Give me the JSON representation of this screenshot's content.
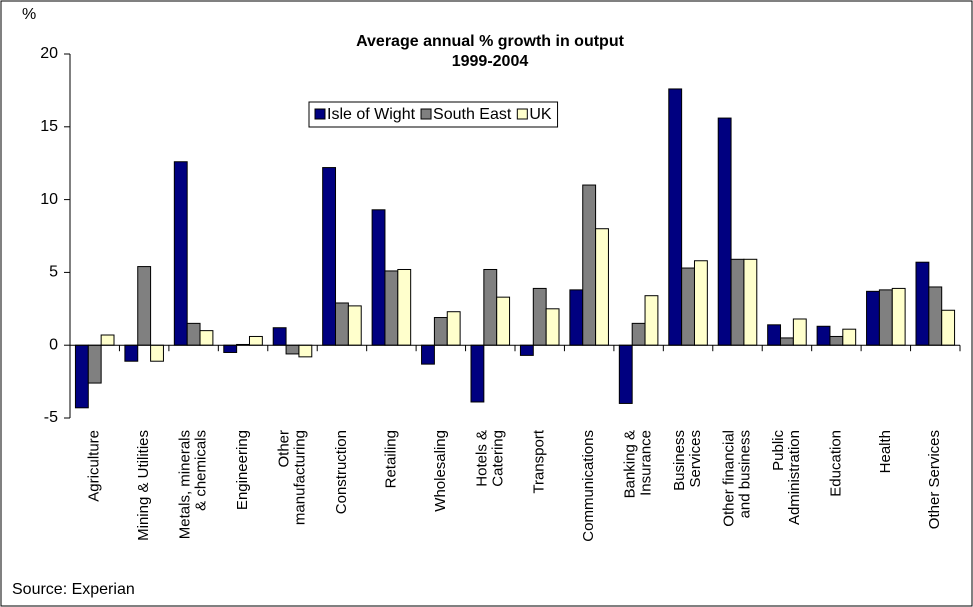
{
  "chart_data": {
    "type": "bar",
    "title": "Average annual % growth in output\n1999-2004",
    "y_label": "%",
    "source": "Source: Experian",
    "categories": [
      "Agriculture",
      "Mining & Utilities",
      "Metals, minerals\n& chemicals",
      "Engineering",
      "Other\nmanufacturing",
      "Construction",
      "Retailing",
      "Wholesaling",
      "Hotels &\nCatering",
      "Transport",
      "Communications",
      "Banking &\nInsurance",
      "Business\nServices",
      "Other financial\nand business",
      "Public\nAdministration",
      "Education",
      "Health",
      "Other Services"
    ],
    "series": [
      {
        "name": "Isle of Wight",
        "color": "#000080",
        "values": [
          -4.3,
          -1.1,
          12.6,
          -0.5,
          1.2,
          12.2,
          9.3,
          -1.3,
          -3.9,
          -0.7,
          3.8,
          -4.0,
          17.6,
          15.6,
          1.4,
          1.3,
          3.7,
          5.7
        ]
      },
      {
        "name": "South East",
        "color": "#808080",
        "values": [
          -2.6,
          5.4,
          1.5,
          0.05,
          -0.6,
          2.9,
          5.1,
          1.9,
          5.2,
          3.9,
          11.0,
          1.5,
          5.3,
          5.9,
          0.5,
          0.6,
          3.8,
          4.0
        ]
      },
      {
        "name": "UK",
        "color": "#ffffcc",
        "values": [
          0.7,
          -1.1,
          1.0,
          0.6,
          -0.8,
          2.7,
          5.2,
          2.3,
          3.3,
          2.5,
          8.0,
          3.4,
          5.8,
          5.9,
          1.8,
          1.1,
          3.9,
          2.4
        ]
      }
    ],
    "ylim": [
      -5,
      20
    ],
    "yticks": [
      -5,
      0,
      5,
      10,
      15,
      20
    ],
    "legend": "top"
  }
}
